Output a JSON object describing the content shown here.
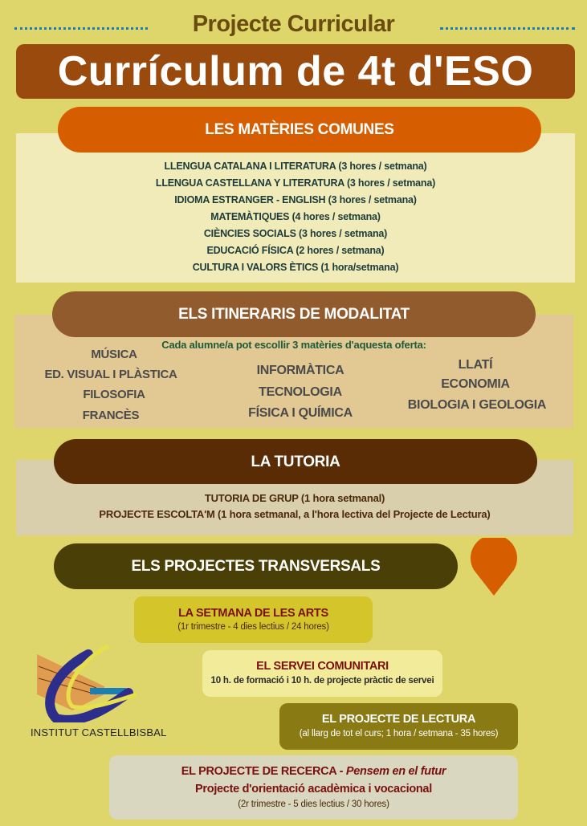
{
  "header": {
    "supertitle": "Projecte Curricular",
    "title": "Currículum de 4t d'ESO"
  },
  "comunes": {
    "title": "LES MATÈRIES COMUNES",
    "items": [
      "LLENGUA CATALANA I LITERATURA (3 hores / setmana)",
      "LLENGUA CASTELLANA Y LITERATURA (3 hores / setmana)",
      "IDIOMA ESTRANGER - ENGLISH (3 hores / setmana)",
      "MATEMÀTIQUES (4 hores / setmana)",
      "CIÈNCIES SOCIALS (3 hores / setmana)",
      "EDUCACIÓ FÍSICA (2 hores / setmana)",
      "CULTURA I VALORS ÈTICS (1 hora/setmana)"
    ]
  },
  "itineraris": {
    "title": "ELS ITINERARIS DE MODALITAT",
    "subtitle": "Cada alumne/a pot escollir 3 matèries d'aquesta oferta:",
    "col1": [
      "MÚSICA",
      "ED. VISUAL I PLÀSTICA",
      "FILOSOFIA",
      "FRANCÈS"
    ],
    "col2": [
      "INFORMÀTICA",
      "TECNOLOGIA",
      "FÍSICA I QUÍMICA"
    ],
    "col3": [
      "LLATÍ",
      "ECONOMIA",
      "BIOLOGIA I GEOLOGIA"
    ]
  },
  "tutoria": {
    "title": "LA TUTORIA",
    "items": [
      "TUTORIA DE GRUP (1 hora setmanal)",
      "PROJECTE ESCOLTA'M (1 hora setmanal, a l'hora lectiva del Projecte de Lectura)"
    ]
  },
  "transversals": {
    "title": "ELS PROJECTES TRANSVERSALS",
    "icon": "map-pin-icon",
    "arts": {
      "title": "LA SETMANA DE LES ARTS",
      "sub": "(1r trimestre - 4 dies lectius / 24 hores)"
    },
    "servei": {
      "title": "EL SERVEI COMUNITARI",
      "sub": "10 h. de formació i 10 h. de projecte pràctic de servei"
    },
    "lectura": {
      "title": "EL PROJECTE DE LECTURA",
      "sub": "(al llarg de tot el curs; 1 hora / setmana - 35 hores)"
    },
    "recerca": {
      "title": "EL PROJECTE DE RECERCA - ",
      "title_em": "Pensem en el futur",
      "line2": "Projecte d'orientació acadèmica i vocacional",
      "sub": "(2r trimestre - 5 dies lectius / 30 hores)"
    }
  },
  "logo": {
    "text": "INSTITUT CASTELLBISBAL"
  },
  "colors": {
    "background": "#ded66a",
    "banner": "#9a4a0c",
    "orange": "#d65e00",
    "brown": "#925b2e",
    "dark_brown": "#5a2c06",
    "olive": "#4a3f06"
  }
}
